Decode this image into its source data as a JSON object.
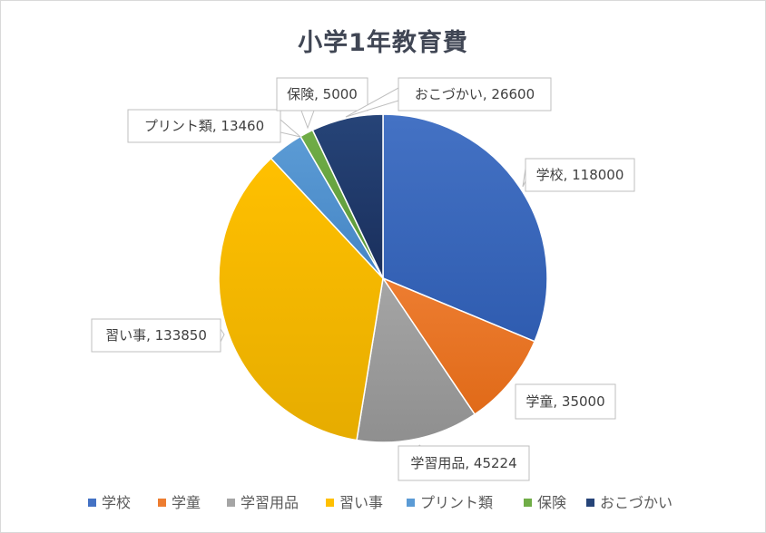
{
  "chart_data": {
    "type": "pie",
    "title": "小学1年教育費",
    "categories": [
      "学校",
      "学童",
      "学習用品",
      "習い事",
      "プリント類",
      "保険",
      "おこづかい"
    ],
    "values": [
      118000,
      35000,
      45224,
      133850,
      13460,
      5000,
      26600
    ],
    "data_labels": [
      "学校, 118000",
      "学童, 35000",
      "学習用品, 45224",
      "習い事, 133850",
      "プリント類, 13460",
      "保険, 5000",
      "おこづかい, 26600"
    ],
    "legend_position": "bottom",
    "colors": [
      "#4472c4",
      "#ed7d31",
      "#a5a5a5",
      "#ffc000",
      "#5b9bd5",
      "#70ad47",
      "#264478"
    ],
    "gradient_dark": [
      "#2f5cb0",
      "#e06a18",
      "#8f8f8f",
      "#e6ac00",
      "#4585c4",
      "#5a9638",
      "#1a2f5c"
    ]
  }
}
